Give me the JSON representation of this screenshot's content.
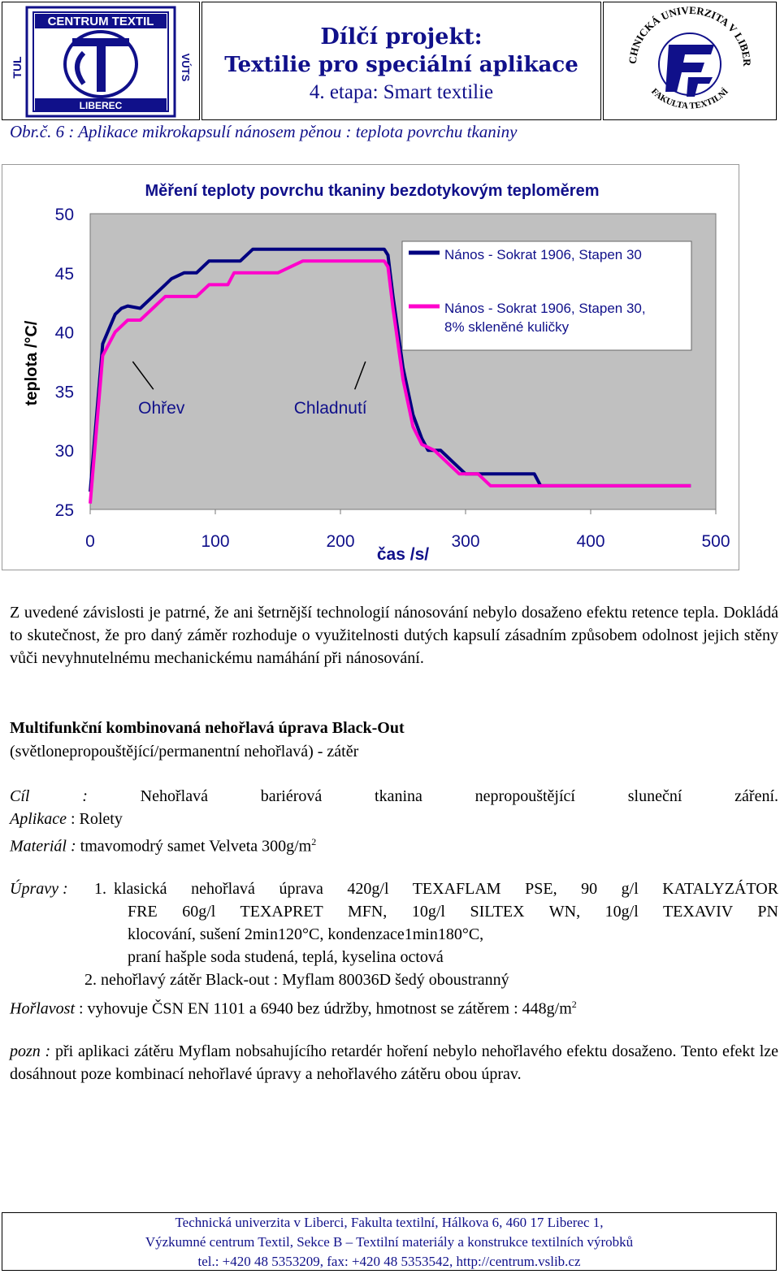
{
  "header": {
    "left_logo": {
      "name": "centrum-textil-logo",
      "top_text": "CENTRUM TEXTIL",
      "bottom_text": "LIBEREC",
      "side_left": "TUL",
      "side_right": "VÚTS"
    },
    "title_line1": "Dílčí projekt:",
    "title_line2": "Textilie pro speciální aplikace",
    "title_line3": "4. etapa: Smart textilie",
    "right_logo": {
      "name": "tul-ft-logo",
      "arc_top": "TECHNICKÁ UNIVERZITA V LIBERCI",
      "arc_bottom": "FAKULTA TEXTILNÍ"
    }
  },
  "figure_caption": "Obr.č. 6 : Aplikace mikrokapsulí nánosem pěnou : teplota povrchu tkaniny",
  "chart_data": {
    "type": "line",
    "title": "Měření teploty povrchu tkaniny bezdotykovým teploměrem",
    "xlabel": "čas /s/",
    "ylabel": "teplota /°C/",
    "xlim": [
      0,
      500
    ],
    "ylim": [
      25,
      50
    ],
    "xticks": [
      "0",
      "100",
      "200",
      "300",
      "400",
      "500"
    ],
    "yticks": [
      "25",
      "30",
      "35",
      "40",
      "45",
      "50"
    ],
    "plot_bg": "#c0c0c0",
    "grid": false,
    "legend": "top-right",
    "series": [
      {
        "name": "Nános - Sokrat 1906, Stapen 30",
        "color": "#000080",
        "x": [
          0,
          10,
          20,
          25,
          30,
          40,
          50,
          60,
          65,
          75,
          85,
          95,
          110,
          120,
          130,
          140,
          150,
          160,
          170,
          185,
          200,
          220,
          235,
          238,
          242,
          250,
          258,
          265,
          270,
          275,
          280,
          290,
          300,
          310,
          320,
          330,
          340,
          345,
          350,
          355,
          360,
          370,
          380,
          400,
          440,
          480
        ],
        "y": [
          26.5,
          39,
          41.5,
          42,
          42.2,
          42,
          43,
          44,
          44.5,
          45,
          45,
          46,
          46,
          46,
          47,
          47,
          47,
          47,
          47,
          47,
          47,
          47,
          47,
          46.5,
          43,
          37,
          33,
          31,
          30,
          30,
          30,
          29,
          28,
          28,
          28,
          28,
          28,
          28,
          28,
          28,
          27,
          27,
          27,
          27,
          27,
          27
        ]
      },
      {
        "name": "Nános - Sokrat 1906, Stapen 30, 8% skleněné kuličky",
        "color": "#ff00cc",
        "x": [
          0,
          10,
          20,
          25,
          30,
          40,
          50,
          60,
          75,
          85,
          95,
          100,
          110,
          115,
          130,
          150,
          170,
          200,
          220,
          235,
          238,
          242,
          250,
          258,
          265,
          275,
          285,
          295,
          300,
          310,
          320,
          330,
          340,
          360,
          380,
          400,
          440,
          480
        ],
        "y": [
          25.5,
          38,
          40,
          40.5,
          41,
          41,
          42,
          43,
          43,
          43,
          44,
          44,
          44,
          45,
          45,
          45,
          46,
          46,
          46,
          46,
          45.5,
          42,
          36,
          32,
          30.5,
          30,
          29,
          28,
          28,
          28,
          27,
          27,
          27,
          27,
          27,
          27,
          27,
          27
        ]
      }
    ],
    "annotations": [
      {
        "text": "Ohřev",
        "x": 57,
        "y": 33.5,
        "arrow_to": [
          34,
          37.5
        ]
      },
      {
        "text": "Chladnutí",
        "x": 192,
        "y": 33.5,
        "arrow_to": [
          220,
          37.5
        ]
      }
    ]
  },
  "body": {
    "p1": "Z uvedené závislosti je patrné, že ani šetrnější technologií nánosování nebylo dosaženo efektu retence tepla. Dokládá to skutečnost, že pro daný záměr rozhoduje o využitelnosti dutých kapsulí zásadním způsobem odolnost jejich stěny vůči nevyhnutelnému mechanickému namáhání při nánosování.",
    "section_heading": "Multifunkční kombinovaná nehořlavá úprava Black-Out",
    "section_subheading": "(světlonepropouštějící/permanentní nehořlavá) - zátěr",
    "cil_label": "Cíl :",
    "cil_text": "Nehořlavá bariérová tkanina nepropouštějící sluneční záření.",
    "aplikace_label": "Aplikace",
    "aplikace_text": ": Rolety",
    "material_label": "Materiál :",
    "material_text": "tmavomodrý samet Velveta 300g/m",
    "material_sup": "2",
    "upravy_label": "Úpravy :",
    "upravy_1_num": "1.",
    "upravy_1_line1": "klasická nehořlavá úprava  420g/l TEXAFLAM PSE, 90 g/l KATALYZÁTOR",
    "upravy_1_line2": "FRE 60g/l TEXAPRET MFN, 10g/l SILTEX WN, 10g/l TEXAVIV PN",
    "upravy_1_line3": "klocování, sušení 2min120°C, kondenzace1min180°C,",
    "upravy_1_line4": "praní hašple soda studená, teplá, kyselina octová",
    "upravy_2": "2. nehořlavý zátěr Black-out : Myflam 80036D šedý oboustranný",
    "horlavost_label": "Hořlavost",
    "horlavost_text": ": vyhovuje ČSN EN 1101 a  6940 bez údržby, hmotnost se zátěrem : 448g/m",
    "horlavost_sup": "2",
    "pozn_label": "pozn :",
    "pozn_text": "při aplikaci zátěru Myflam nobsahujícího retardér hoření nebylo nehořlavého efektu dosaženo. Tento efekt lze dosáhnout poze kombinací nehořlavé úpravy a nehořlavého zátěru obou úprav."
  },
  "footer": {
    "line1": "Technická univerzita v Liberci, Fakulta textilní, Hálkova 6, 460 17 Liberec 1,",
    "line2": "Výzkumné centrum Textil, Sekce B – Textilní materiály a konstrukce textilních výrobků",
    "line3": "tel.: +420 48 5353209, fax: +420 48 5353542, http://centrum.vslib.cz"
  }
}
